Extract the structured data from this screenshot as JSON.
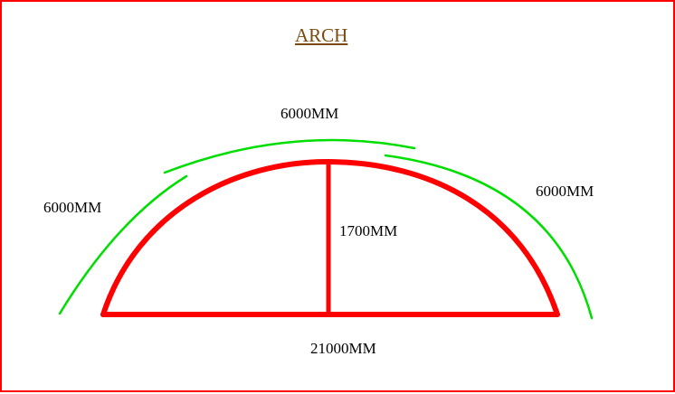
{
  "title": "ARCH",
  "labels": {
    "top_arc_length": "6000MM",
    "left_arc_length": "6000MM",
    "right_arc_length": "6000MM",
    "rise": "1700MM",
    "span": "21000MM"
  },
  "colors": {
    "arch": "#ff0000",
    "arc_segments": "#00dd00",
    "title": "#7b4a0f",
    "text": "#000000",
    "border": "#ff0000"
  }
}
